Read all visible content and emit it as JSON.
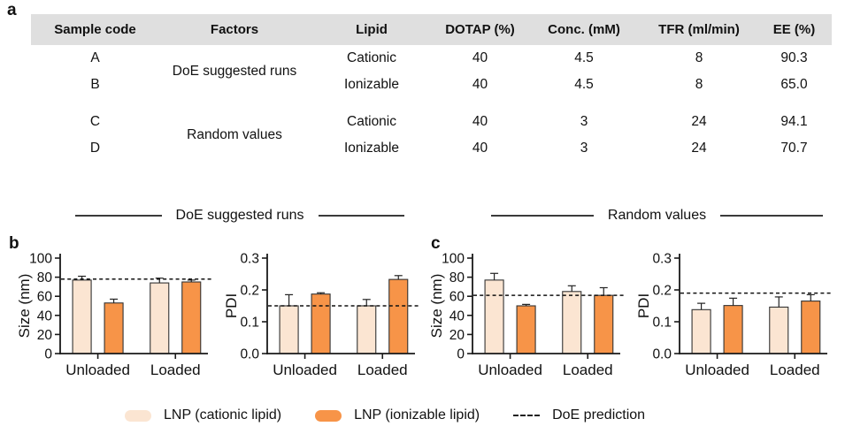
{
  "panels": {
    "a": "a",
    "b": "b",
    "c": "c"
  },
  "table": {
    "headers": [
      "Sample code",
      "Factors",
      "Lipid",
      "DOTAP (%)",
      "Conc. (mM)",
      "TFR (ml/min)",
      "EE (%)"
    ],
    "groups": [
      {
        "factor": "DoE suggested runs",
        "rows": [
          {
            "code": "A",
            "lipid": "Cationic",
            "dotap": "40",
            "conc": "4.5",
            "tfr": "8",
            "ee": "90.3"
          },
          {
            "code": "B",
            "lipid": "Ionizable",
            "dotap": "40",
            "conc": "4.5",
            "tfr": "8",
            "ee": "65.0"
          }
        ]
      },
      {
        "factor": "Random values",
        "rows": [
          {
            "code": "C",
            "lipid": "Cationic",
            "dotap": "40",
            "conc": "3",
            "tfr": "24",
            "ee": "94.1"
          },
          {
            "code": "D",
            "lipid": "Ionizable",
            "dotap": "40",
            "conc": "3",
            "tfr": "24",
            "ee": "70.7"
          }
        ]
      }
    ]
  },
  "sections": {
    "doe": "DoE suggested runs",
    "random": "Random values"
  },
  "chart_data": [
    {
      "type": "bar",
      "panel": "b",
      "section": "DoE suggested runs",
      "ylabel": "Size (nm)",
      "ylim": [
        0,
        100
      ],
      "yticks": [
        {
          "v": 0,
          "label": "0"
        },
        {
          "v": 20,
          "label": "20"
        },
        {
          "v": 40,
          "label": "40"
        },
        {
          "v": 60,
          "label": "60"
        },
        {
          "v": 80,
          "label": "80"
        },
        {
          "v": 100,
          "label": "100"
        }
      ],
      "categories": [
        "Unloaded",
        "Loaded"
      ],
      "series": [
        {
          "name": "LNP (cationic lipid)",
          "color": "#fbe5d2",
          "values": [
            77,
            74
          ],
          "errors": [
            4,
            5
          ]
        },
        {
          "name": "LNP (ionizable lipid)",
          "color": "#f79448",
          "values": [
            53,
            75
          ],
          "errors": [
            4,
            2
          ]
        }
      ],
      "prediction": 78
    },
    {
      "type": "bar",
      "panel": "b",
      "section": "DoE suggested runs",
      "ylabel": "PDI",
      "ylim": [
        0,
        0.3
      ],
      "yticks": [
        {
          "v": 0,
          "label": "0.0"
        },
        {
          "v": 0.1,
          "label": "0.1"
        },
        {
          "v": 0.2,
          "label": "0.2"
        },
        {
          "v": 0.3,
          "label": "0.3"
        }
      ],
      "categories": [
        "Unloaded",
        "Loaded"
      ],
      "series": [
        {
          "name": "LNP (cationic lipid)",
          "color": "#fbe5d2",
          "values": [
            0.15,
            0.15
          ],
          "errors": [
            0.035,
            0.02
          ]
        },
        {
          "name": "LNP (ionizable lipid)",
          "color": "#f79448",
          "values": [
            0.187,
            0.233
          ],
          "errors": [
            0.004,
            0.012
          ]
        }
      ],
      "prediction": 0.15
    },
    {
      "type": "bar",
      "panel": "c",
      "section": "Random values",
      "ylabel": "Size (nm)",
      "ylim": [
        0,
        100
      ],
      "yticks": [
        {
          "v": 0,
          "label": "0"
        },
        {
          "v": 20,
          "label": "20"
        },
        {
          "v": 40,
          "label": "40"
        },
        {
          "v": 60,
          "label": "60"
        },
        {
          "v": 80,
          "label": "80"
        },
        {
          "v": 100,
          "label": "100"
        }
      ],
      "categories": [
        "Unloaded",
        "Loaded"
      ],
      "series": [
        {
          "name": "LNP (cationic lipid)",
          "color": "#fbe5d2",
          "values": [
            77,
            65
          ],
          "errors": [
            7,
            6
          ]
        },
        {
          "name": "LNP (ionizable lipid)",
          "color": "#f79448",
          "values": [
            50,
            61
          ],
          "errors": [
            1.5,
            8
          ]
        }
      ],
      "prediction": 61
    },
    {
      "type": "bar",
      "panel": "c",
      "section": "Random values",
      "ylabel": "PDI",
      "ylim": [
        0,
        0.3
      ],
      "yticks": [
        {
          "v": 0,
          "label": "0.0"
        },
        {
          "v": 0.1,
          "label": "0.1"
        },
        {
          "v": 0.2,
          "label": "0.2"
        },
        {
          "v": 0.3,
          "label": "0.3"
        }
      ],
      "categories": [
        "Unloaded",
        "Loaded"
      ],
      "series": [
        {
          "name": "LNP (cationic lipid)",
          "color": "#fbe5d2",
          "values": [
            0.138,
            0.146
          ],
          "errors": [
            0.02,
            0.032
          ]
        },
        {
          "name": "LNP (ionizable lipid)",
          "color": "#f79448",
          "values": [
            0.151,
            0.165
          ],
          "errors": [
            0.023,
            0.02
          ]
        }
      ],
      "prediction": 0.19
    }
  ],
  "legend": {
    "items": [
      {
        "label": "LNP (cationic lipid)",
        "color": "#fbe5d2",
        "type": "swatch"
      },
      {
        "label": "LNP (ionizable lipid)",
        "color": "#f79448",
        "type": "swatch"
      },
      {
        "label": "DoE prediction",
        "type": "dash"
      }
    ]
  },
  "colors": {
    "cationic": "#fbe5d2",
    "ionizable": "#f79448",
    "table_header_bg": "#dfdfdf",
    "axis": "#1a1a1a"
  }
}
